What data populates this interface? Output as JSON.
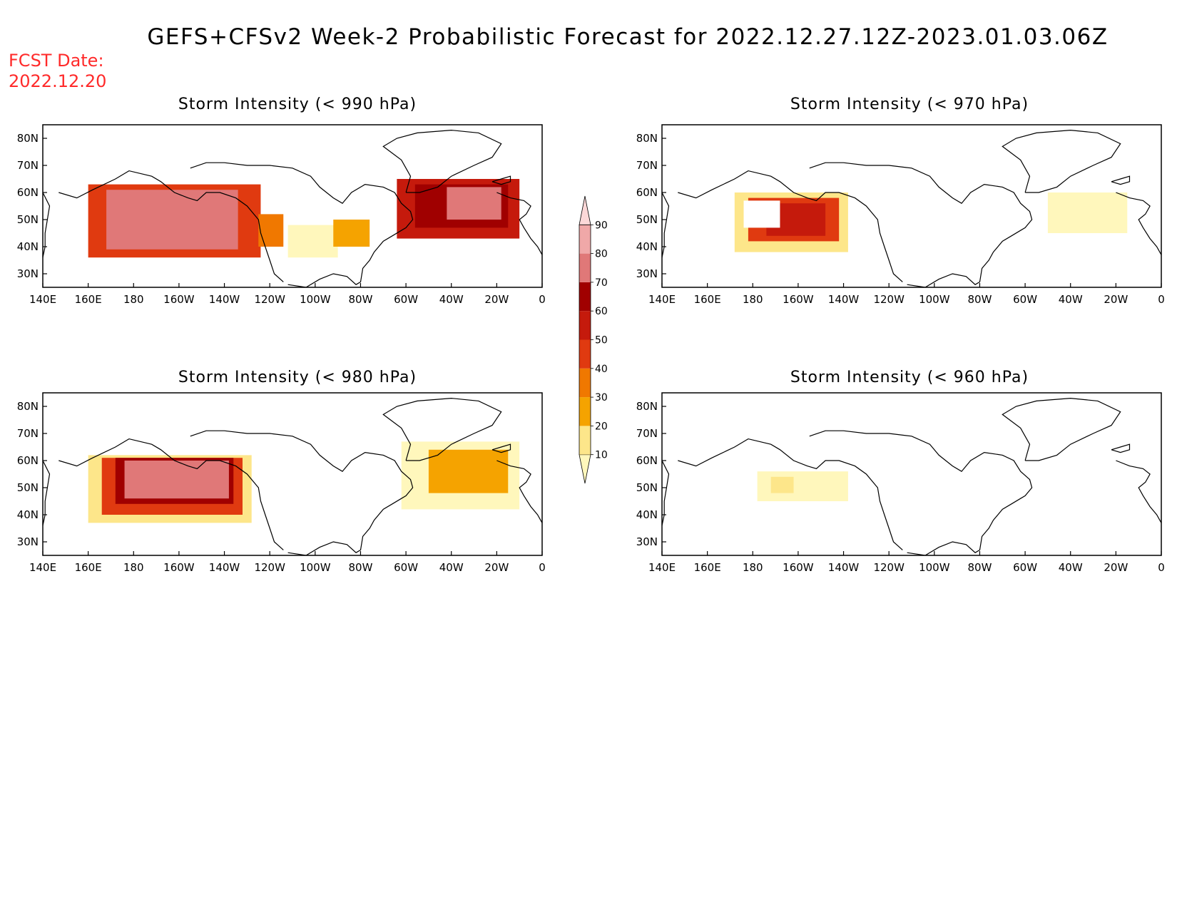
{
  "header": {
    "title": "GEFS+CFSv2 Week-2 Probabilistic Forecast for 2022.12.27.12Z-2023.01.03.06Z",
    "fcst_label": "FCST Date:",
    "fcst_date": "2022.12.20"
  },
  "axes": {
    "lon_labels": [
      "140E",
      "160E",
      "180",
      "160W",
      "140W",
      "120W",
      "100W",
      "80W",
      "60W",
      "40W",
      "20W",
      "0"
    ],
    "lat_labels": [
      "80N",
      "70N",
      "60N",
      "50N",
      "40N",
      "30N"
    ]
  },
  "panels": [
    {
      "title": "Storm Intensity (< 990 hPa)"
    },
    {
      "title": "Storm Intensity (< 970 hPa)"
    },
    {
      "title": "Storm Intensity (< 980 hPa)"
    },
    {
      "title": "Storm Intensity (< 960 hPa)"
    }
  ],
  "colorbar": {
    "levels": [
      "10",
      "20",
      "30",
      "40",
      "50",
      "60",
      "70",
      "80",
      "90"
    ],
    "colors": [
      "#fff7bc",
      "#fde68a",
      "#f5a300",
      "#f07800",
      "#e03a10",
      "#c51a0c",
      "#a00000",
      "#e07878",
      "#f0a8a8",
      "#fbd8d8"
    ]
  },
  "map_data": {
    "lon_range": [
      140,
      360
    ],
    "lat_range": [
      25,
      85
    ],
    "probability_fields": [
      [
        {
          "lon": [
            162,
            200
          ],
          "lat": [
            37,
            59
          ],
          "p": 0
        },
        {
          "lon": [
            170,
            225
          ],
          "lat": [
            40,
            62
          ],
          "p": 95
        },
        {
          "lon": [
            190,
            225
          ],
          "lat": [
            44,
            58
          ],
          "p": 95
        },
        {
          "lon": [
            186,
            222
          ],
          "lat": [
            46,
            58
          ],
          "p": 98
        },
        {
          "lon": [
            160,
            236
          ],
          "lat": [
            36,
            63
          ],
          "p": 55
        },
        {
          "lon": [
            168,
            226
          ],
          "lat": [
            39,
            61
          ],
          "p": 80
        },
        {
          "lon": [
            235,
            246
          ],
          "lat": [
            40,
            52
          ],
          "p": 40
        },
        {
          "lon": [
            248,
            270
          ],
          "lat": [
            36,
            48
          ],
          "p": 15
        },
        {
          "lon": [
            268,
            284
          ],
          "lat": [
            40,
            50
          ],
          "p": 35
        },
        {
          "lon": [
            296,
            350
          ],
          "lat": [
            43,
            65
          ],
          "p": 60
        },
        {
          "lon": [
            304,
            345
          ],
          "lat": [
            47,
            63
          ],
          "p": 75
        },
        {
          "lon": [
            318,
            342
          ],
          "lat": [
            50,
            62
          ],
          "p": 85
        }
      ],
      [
        {
          "lon": [
            172,
            222
          ],
          "lat": [
            38,
            60
          ],
          "p": 25
        },
        {
          "lon": [
            178,
            218
          ],
          "lat": [
            42,
            58
          ],
          "p": 55
        },
        {
          "lon": [
            186,
            212
          ],
          "lat": [
            44,
            56
          ],
          "p": 65
        },
        {
          "lon": [
            176,
            192
          ],
          "lat": [
            47,
            57
          ],
          "p": 0
        },
        {
          "lon": [
            310,
            345
          ],
          "lat": [
            45,
            60
          ],
          "p": 12
        }
      ],
      [
        {
          "lon": [
            160,
            232
          ],
          "lat": [
            37,
            62
          ],
          "p": 25
        },
        {
          "lon": [
            166,
            228
          ],
          "lat": [
            40,
            61
          ],
          "p": 55
        },
        {
          "lon": [
            172,
            224
          ],
          "lat": [
            44,
            61
          ],
          "p": 75
        },
        {
          "lon": [
            176,
            222
          ],
          "lat": [
            46,
            60
          ],
          "p": 88
        },
        {
          "lon": [
            298,
            350
          ],
          "lat": [
            42,
            67
          ],
          "p": 15
        },
        {
          "lon": [
            310,
            345
          ],
          "lat": [
            48,
            64
          ],
          "p": 32
        }
      ],
      [
        {
          "lon": [
            182,
            222
          ],
          "lat": [
            45,
            56
          ],
          "p": 12
        },
        {
          "lon": [
            188,
            198
          ],
          "lat": [
            48,
            54
          ],
          "p": 25
        }
      ]
    ]
  }
}
